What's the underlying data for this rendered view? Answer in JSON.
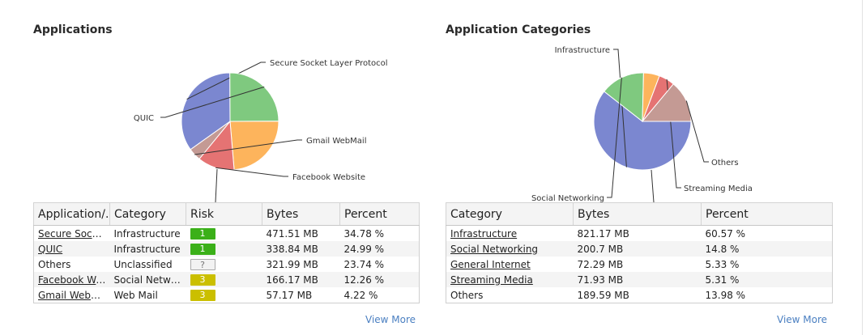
{
  "applications": {
    "title": "Applications",
    "columns": [
      "Application/..",
      "Category",
      "Risk",
      "Bytes",
      "Percent"
    ],
    "rows": [
      {
        "application": "Secure Socket..",
        "category": "Infrastructure",
        "risk": "1",
        "bytes": "471.51 MB",
        "percent": "34.78 %"
      },
      {
        "application": "QUIC",
        "category": "Infrastructure",
        "risk": "1",
        "bytes": "338.84 MB",
        "percent": "24.99 %"
      },
      {
        "application": "Others",
        "category": "Unclassified",
        "risk": "?",
        "bytes": "321.99 MB",
        "percent": "23.74 %"
      },
      {
        "application": "Facebook Web..",
        "category": "Social Networ...",
        "risk": "3",
        "bytes": "166.17 MB",
        "percent": "12.26 %"
      },
      {
        "application": "Gmail WebMail",
        "category": "Web Mail",
        "risk": "3",
        "bytes": "57.17 MB",
        "percent": "4.22 %"
      }
    ],
    "view_more": "View More"
  },
  "categories": {
    "title": "Application Categories",
    "columns": [
      "Category",
      "Bytes",
      "Percent"
    ],
    "rows": [
      {
        "category": "Infrastructure",
        "bytes": "821.17 MB",
        "percent": "60.57 %"
      },
      {
        "category": "Social Networking",
        "bytes": "200.7 MB",
        "percent": "14.8 %"
      },
      {
        "category": "General Internet",
        "bytes": "72.29 MB",
        "percent": "5.33 %"
      },
      {
        "category": "Streaming Media",
        "bytes": "71.93 MB",
        "percent": "5.31 %"
      },
      {
        "category": "Others",
        "bytes": "189.59 MB",
        "percent": "13.98 %"
      }
    ],
    "view_more": "View More"
  },
  "chart_data": [
    {
      "type": "pie",
      "categories": [
        "Secure Socket Layer Protocol",
        "QUIC",
        "Others",
        "Facebook Website",
        "Gmail WebMail"
      ],
      "values": [
        34.78,
        24.99,
        23.74,
        12.26,
        4.22
      ],
      "colors": [
        "#7b87d0",
        "#7fc97f",
        "#fdb45c",
        "#e57373",
        "#c49a94"
      ],
      "labels_shown": [
        "Secure Socket Layer Protocol",
        "QUIC",
        "",
        "Facebook Website",
        "Gmail WebMail"
      ]
    },
    {
      "type": "pie",
      "categories": [
        "Infrastructure",
        "Social Networking",
        "General Internet",
        "Streaming Media",
        "Others"
      ],
      "values": [
        60.57,
        14.8,
        5.33,
        5.31,
        13.98
      ],
      "colors": [
        "#7b87d0",
        "#7fc97f",
        "#fdb45c",
        "#e57373",
        "#c49a94"
      ],
      "labels_shown": [
        "Infrastructure",
        "Social Networking",
        "",
        "Streaming Media",
        "Others"
      ]
    }
  ]
}
